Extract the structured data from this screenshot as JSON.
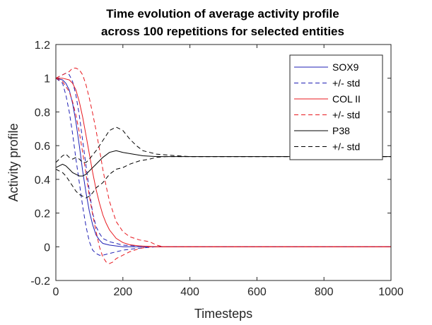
{
  "chart_data": {
    "type": "line",
    "title": "Time evolution of average activity profile",
    "subtitle": "across 100 repetitions for selected entities",
    "xlabel": "Timesteps",
    "ylabel": "Activity profile",
    "xlim": [
      0,
      1000
    ],
    "ylim": [
      -0.2,
      1.2
    ],
    "xticks": [
      0,
      200,
      400,
      600,
      800,
      1000
    ],
    "yticks": [
      -0.2,
      0,
      0.2,
      0.4,
      0.6,
      0.8,
      1,
      1.2
    ],
    "xtick_labels": [
      "0",
      "200",
      "400",
      "600",
      "800",
      "1000"
    ],
    "ytick_labels": [
      "-0.2",
      "0",
      "0.2",
      "0.4",
      "0.6",
      "0.8",
      "1",
      "1.2"
    ],
    "legend_position": "top-right",
    "series": [
      {
        "name": "SOX9",
        "color": "#1f1fb4",
        "dash": "solid",
        "x": [
          0,
          20,
          30,
          40,
          50,
          60,
          70,
          80,
          90,
          100,
          110,
          120,
          130,
          140,
          160,
          180,
          200,
          240,
          300,
          1000
        ],
        "y": [
          1.0,
          0.99,
          0.97,
          0.93,
          0.85,
          0.74,
          0.6,
          0.45,
          0.32,
          0.21,
          0.13,
          0.07,
          0.04,
          0.02,
          0.01,
          0.005,
          0.0,
          0.0,
          0.0,
          0.0
        ]
      },
      {
        "name": "+/- std",
        "color": "#1f1fb4",
        "dash": "dashed",
        "x": [
          0,
          20,
          30,
          40,
          50,
          60,
          70,
          80,
          90,
          100,
          110,
          120,
          130,
          140,
          160,
          180,
          200,
          240,
          300,
          1000
        ],
        "y": [
          1.0,
          1.02,
          1.03,
          1.02,
          0.98,
          0.9,
          0.78,
          0.63,
          0.48,
          0.33,
          0.2,
          0.12,
          0.08,
          0.05,
          0.03,
          0.02,
          0.01,
          0.005,
          0.0,
          0.0
        ]
      },
      {
        "name": "+/- std (lower)",
        "color": "#1f1fb4",
        "dash": "dashed",
        "x": [
          0,
          20,
          30,
          40,
          50,
          60,
          70,
          80,
          90,
          100,
          110,
          120,
          130,
          140,
          160,
          180,
          200,
          240,
          300,
          1000
        ],
        "y": [
          1.0,
          0.97,
          0.9,
          0.8,
          0.67,
          0.52,
          0.38,
          0.24,
          0.12,
          0.03,
          -0.02,
          -0.04,
          -0.05,
          -0.05,
          -0.04,
          -0.03,
          -0.02,
          -0.01,
          0.0,
          0.0
        ]
      },
      {
        "name": "COL II",
        "color": "#e8191f",
        "dash": "solid",
        "x": [
          0,
          20,
          40,
          50,
          60,
          70,
          80,
          90,
          100,
          110,
          120,
          130,
          140,
          150,
          160,
          180,
          200,
          220,
          250,
          300,
          1000
        ],
        "y": [
          1.0,
          1.0,
          0.99,
          0.97,
          0.93,
          0.86,
          0.77,
          0.66,
          0.55,
          0.44,
          0.34,
          0.26,
          0.19,
          0.14,
          0.1,
          0.05,
          0.025,
          0.012,
          0.005,
          0.0,
          0.0
        ]
      },
      {
        "name": "+/- std",
        "color": "#e8191f",
        "dash": "dashed",
        "x": [
          0,
          20,
          40,
          50,
          60,
          70,
          80,
          90,
          100,
          110,
          120,
          130,
          140,
          150,
          160,
          180,
          200,
          220,
          250,
          280,
          300,
          320,
          1000
        ],
        "y": [
          1.0,
          1.02,
          1.04,
          1.06,
          1.06,
          1.05,
          1.02,
          0.96,
          0.88,
          0.79,
          0.69,
          0.58,
          0.46,
          0.36,
          0.27,
          0.15,
          0.09,
          0.06,
          0.04,
          0.03,
          0.01,
          0.0,
          0.0
        ]
      },
      {
        "name": "+/- std (lower)",
        "color": "#e8191f",
        "dash": "dashed",
        "x": [
          0,
          20,
          40,
          50,
          60,
          70,
          80,
          90,
          100,
          110,
          120,
          130,
          140,
          150,
          160,
          170,
          180,
          200,
          220,
          250,
          280,
          1000
        ],
        "y": [
          1.0,
          0.98,
          0.92,
          0.86,
          0.78,
          0.68,
          0.56,
          0.43,
          0.3,
          0.19,
          0.09,
          0.0,
          -0.06,
          -0.09,
          -0.1,
          -0.09,
          -0.07,
          -0.05,
          -0.03,
          -0.01,
          0.0,
          0.0
        ]
      },
      {
        "name": "P38",
        "color": "#000000",
        "dash": "solid",
        "x": [
          0,
          10,
          20,
          30,
          40,
          50,
          60,
          70,
          80,
          90,
          100,
          120,
          140,
          160,
          180,
          200,
          230,
          260,
          300,
          350,
          400,
          1000
        ],
        "y": [
          0.47,
          0.48,
          0.49,
          0.48,
          0.46,
          0.44,
          0.43,
          0.42,
          0.42,
          0.43,
          0.45,
          0.49,
          0.53,
          0.56,
          0.57,
          0.56,
          0.55,
          0.54,
          0.535,
          0.535,
          0.535,
          0.535
        ]
      },
      {
        "name": "+/- std",
        "color": "#000000",
        "dash": "dashed",
        "x": [
          0,
          10,
          20,
          30,
          40,
          50,
          60,
          70,
          80,
          90,
          100,
          120,
          140,
          160,
          180,
          200,
          220,
          240,
          260,
          280,
          300,
          330,
          360,
          400,
          1000
        ],
        "y": [
          0.5,
          0.52,
          0.54,
          0.55,
          0.53,
          0.52,
          0.53,
          0.52,
          0.5,
          0.5,
          0.52,
          0.57,
          0.63,
          0.69,
          0.71,
          0.69,
          0.64,
          0.6,
          0.57,
          0.56,
          0.55,
          0.545,
          0.54,
          0.535,
          0.535
        ]
      },
      {
        "name": "+/- std (lower)",
        "color": "#000000",
        "dash": "dashed",
        "x": [
          0,
          10,
          20,
          30,
          40,
          50,
          60,
          70,
          80,
          90,
          100,
          110,
          120,
          140,
          160,
          180,
          200,
          220,
          250,
          280,
          300,
          330,
          360,
          400,
          1000
        ],
        "y": [
          0.46,
          0.45,
          0.44,
          0.42,
          0.39,
          0.36,
          0.33,
          0.31,
          0.3,
          0.29,
          0.3,
          0.32,
          0.35,
          0.38,
          0.43,
          0.46,
          0.47,
          0.49,
          0.51,
          0.52,
          0.53,
          0.535,
          0.535,
          0.535,
          0.535
        ]
      }
    ],
    "legend": [
      {
        "label": "SOX9",
        "color": "#1f1fb4",
        "dash": "solid"
      },
      {
        "label": "+/- std",
        "color": "#1f1fb4",
        "dash": "dashed"
      },
      {
        "label": "COL II",
        "color": "#e8191f",
        "dash": "solid"
      },
      {
        "label": "+/- std",
        "color": "#e8191f",
        "dash": "dashed"
      },
      {
        "label": "P38",
        "color": "#000000",
        "dash": "solid"
      },
      {
        "label": "+/- std",
        "color": "#000000",
        "dash": "dashed"
      }
    ]
  }
}
